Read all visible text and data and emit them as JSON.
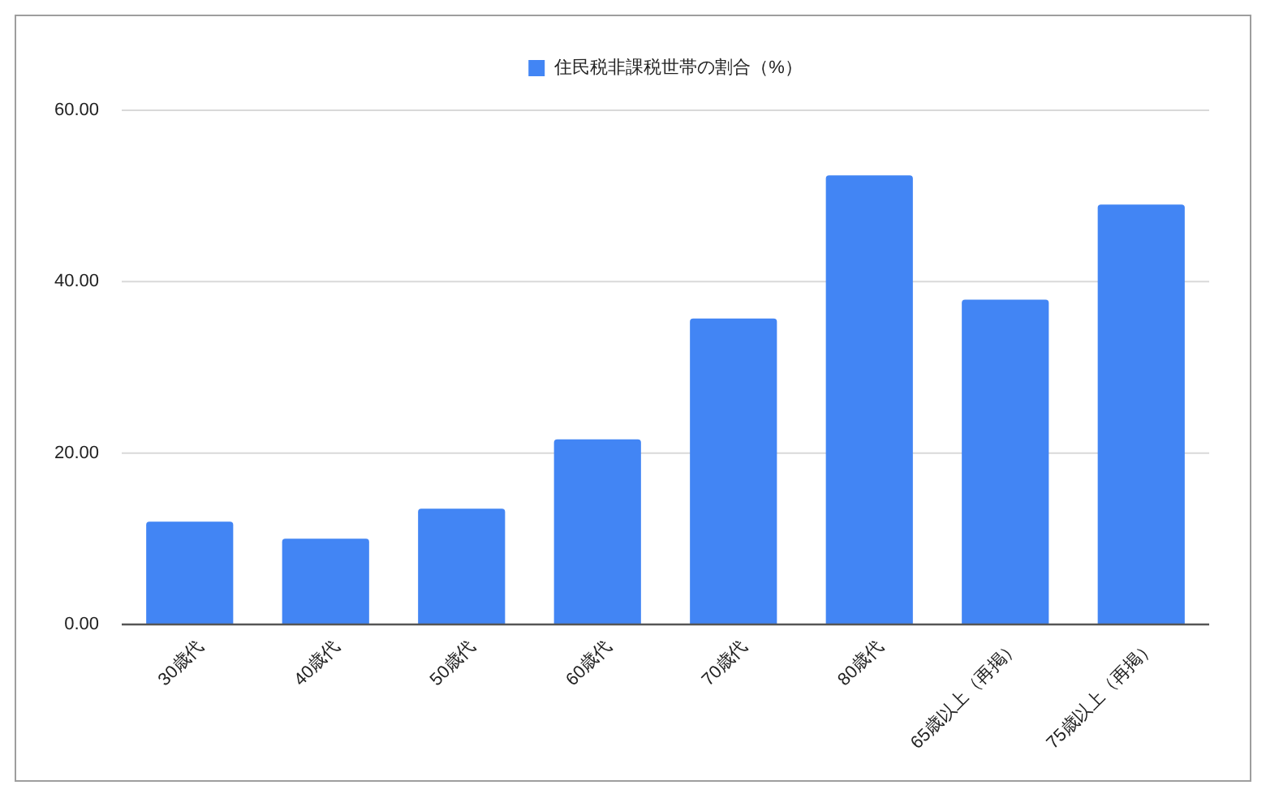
{
  "chart_data": {
    "type": "bar",
    "categories": [
      "30歳代",
      "40歳代",
      "50歳代",
      "60歳代",
      "70歳代",
      "80歳代",
      "65歳以上（再掲）",
      "75歳以上（再掲）"
    ],
    "series": [
      {
        "name": "住民税非課税世帯の割合（%）",
        "color": "#4285f4",
        "values": [
          12.0,
          10.0,
          13.5,
          21.6,
          35.7,
          52.4,
          37.9,
          49.0
        ]
      }
    ],
    "ylim": [
      0,
      60
    ],
    "yticks": [
      {
        "value": 0,
        "label": "0.00"
      },
      {
        "value": 20,
        "label": "20.00"
      },
      {
        "value": 40,
        "label": "40.00"
      },
      {
        "value": 60,
        "label": "60.00"
      }
    ],
    "grid": "y",
    "legend": "top"
  }
}
